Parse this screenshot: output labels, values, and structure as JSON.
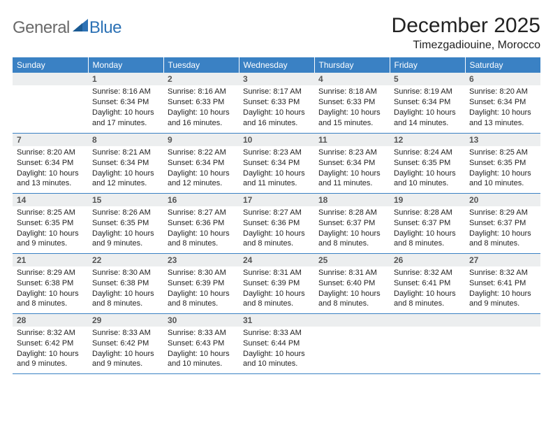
{
  "logo": {
    "general": "General",
    "blue": "Blue"
  },
  "title": "December 2025",
  "location": "Timezgadiouine, Morocco",
  "colors": {
    "header_bg": "#3a81c4",
    "header_text": "#ffffff",
    "daynum_bg": "#eceeef",
    "daynum_text": "#555555",
    "border": "#3a81c4",
    "logo_gray": "#6a6a6a",
    "logo_blue": "#2d72b5"
  },
  "weekdays": [
    "Sunday",
    "Monday",
    "Tuesday",
    "Wednesday",
    "Thursday",
    "Friday",
    "Saturday"
  ],
  "weeks": [
    [
      {
        "day": "",
        "sunrise": "",
        "sunset": "",
        "daylight": ""
      },
      {
        "day": "1",
        "sunrise": "Sunrise: 8:16 AM",
        "sunset": "Sunset: 6:34 PM",
        "daylight": "Daylight: 10 hours and 17 minutes."
      },
      {
        "day": "2",
        "sunrise": "Sunrise: 8:16 AM",
        "sunset": "Sunset: 6:33 PM",
        "daylight": "Daylight: 10 hours and 16 minutes."
      },
      {
        "day": "3",
        "sunrise": "Sunrise: 8:17 AM",
        "sunset": "Sunset: 6:33 PM",
        "daylight": "Daylight: 10 hours and 16 minutes."
      },
      {
        "day": "4",
        "sunrise": "Sunrise: 8:18 AM",
        "sunset": "Sunset: 6:33 PM",
        "daylight": "Daylight: 10 hours and 15 minutes."
      },
      {
        "day": "5",
        "sunrise": "Sunrise: 8:19 AM",
        "sunset": "Sunset: 6:34 PM",
        "daylight": "Daylight: 10 hours and 14 minutes."
      },
      {
        "day": "6",
        "sunrise": "Sunrise: 8:20 AM",
        "sunset": "Sunset: 6:34 PM",
        "daylight": "Daylight: 10 hours and 13 minutes."
      }
    ],
    [
      {
        "day": "7",
        "sunrise": "Sunrise: 8:20 AM",
        "sunset": "Sunset: 6:34 PM",
        "daylight": "Daylight: 10 hours and 13 minutes."
      },
      {
        "day": "8",
        "sunrise": "Sunrise: 8:21 AM",
        "sunset": "Sunset: 6:34 PM",
        "daylight": "Daylight: 10 hours and 12 minutes."
      },
      {
        "day": "9",
        "sunrise": "Sunrise: 8:22 AM",
        "sunset": "Sunset: 6:34 PM",
        "daylight": "Daylight: 10 hours and 12 minutes."
      },
      {
        "day": "10",
        "sunrise": "Sunrise: 8:23 AM",
        "sunset": "Sunset: 6:34 PM",
        "daylight": "Daylight: 10 hours and 11 minutes."
      },
      {
        "day": "11",
        "sunrise": "Sunrise: 8:23 AM",
        "sunset": "Sunset: 6:34 PM",
        "daylight": "Daylight: 10 hours and 11 minutes."
      },
      {
        "day": "12",
        "sunrise": "Sunrise: 8:24 AM",
        "sunset": "Sunset: 6:35 PM",
        "daylight": "Daylight: 10 hours and 10 minutes."
      },
      {
        "day": "13",
        "sunrise": "Sunrise: 8:25 AM",
        "sunset": "Sunset: 6:35 PM",
        "daylight": "Daylight: 10 hours and 10 minutes."
      }
    ],
    [
      {
        "day": "14",
        "sunrise": "Sunrise: 8:25 AM",
        "sunset": "Sunset: 6:35 PM",
        "daylight": "Daylight: 10 hours and 9 minutes."
      },
      {
        "day": "15",
        "sunrise": "Sunrise: 8:26 AM",
        "sunset": "Sunset: 6:35 PM",
        "daylight": "Daylight: 10 hours and 9 minutes."
      },
      {
        "day": "16",
        "sunrise": "Sunrise: 8:27 AM",
        "sunset": "Sunset: 6:36 PM",
        "daylight": "Daylight: 10 hours and 8 minutes."
      },
      {
        "day": "17",
        "sunrise": "Sunrise: 8:27 AM",
        "sunset": "Sunset: 6:36 PM",
        "daylight": "Daylight: 10 hours and 8 minutes."
      },
      {
        "day": "18",
        "sunrise": "Sunrise: 8:28 AM",
        "sunset": "Sunset: 6:37 PM",
        "daylight": "Daylight: 10 hours and 8 minutes."
      },
      {
        "day": "19",
        "sunrise": "Sunrise: 8:28 AM",
        "sunset": "Sunset: 6:37 PM",
        "daylight": "Daylight: 10 hours and 8 minutes."
      },
      {
        "day": "20",
        "sunrise": "Sunrise: 8:29 AM",
        "sunset": "Sunset: 6:37 PM",
        "daylight": "Daylight: 10 hours and 8 minutes."
      }
    ],
    [
      {
        "day": "21",
        "sunrise": "Sunrise: 8:29 AM",
        "sunset": "Sunset: 6:38 PM",
        "daylight": "Daylight: 10 hours and 8 minutes."
      },
      {
        "day": "22",
        "sunrise": "Sunrise: 8:30 AM",
        "sunset": "Sunset: 6:38 PM",
        "daylight": "Daylight: 10 hours and 8 minutes."
      },
      {
        "day": "23",
        "sunrise": "Sunrise: 8:30 AM",
        "sunset": "Sunset: 6:39 PM",
        "daylight": "Daylight: 10 hours and 8 minutes."
      },
      {
        "day": "24",
        "sunrise": "Sunrise: 8:31 AM",
        "sunset": "Sunset: 6:39 PM",
        "daylight": "Daylight: 10 hours and 8 minutes."
      },
      {
        "day": "25",
        "sunrise": "Sunrise: 8:31 AM",
        "sunset": "Sunset: 6:40 PM",
        "daylight": "Daylight: 10 hours and 8 minutes."
      },
      {
        "day": "26",
        "sunrise": "Sunrise: 8:32 AM",
        "sunset": "Sunset: 6:41 PM",
        "daylight": "Daylight: 10 hours and 8 minutes."
      },
      {
        "day": "27",
        "sunrise": "Sunrise: 8:32 AM",
        "sunset": "Sunset: 6:41 PM",
        "daylight": "Daylight: 10 hours and 9 minutes."
      }
    ],
    [
      {
        "day": "28",
        "sunrise": "Sunrise: 8:32 AM",
        "sunset": "Sunset: 6:42 PM",
        "daylight": "Daylight: 10 hours and 9 minutes."
      },
      {
        "day": "29",
        "sunrise": "Sunrise: 8:33 AM",
        "sunset": "Sunset: 6:42 PM",
        "daylight": "Daylight: 10 hours and 9 minutes."
      },
      {
        "day": "30",
        "sunrise": "Sunrise: 8:33 AM",
        "sunset": "Sunset: 6:43 PM",
        "daylight": "Daylight: 10 hours and 10 minutes."
      },
      {
        "day": "31",
        "sunrise": "Sunrise: 8:33 AM",
        "sunset": "Sunset: 6:44 PM",
        "daylight": "Daylight: 10 hours and 10 minutes."
      },
      {
        "day": "",
        "sunrise": "",
        "sunset": "",
        "daylight": ""
      },
      {
        "day": "",
        "sunrise": "",
        "sunset": "",
        "daylight": ""
      },
      {
        "day": "",
        "sunrise": "",
        "sunset": "",
        "daylight": ""
      }
    ]
  ]
}
